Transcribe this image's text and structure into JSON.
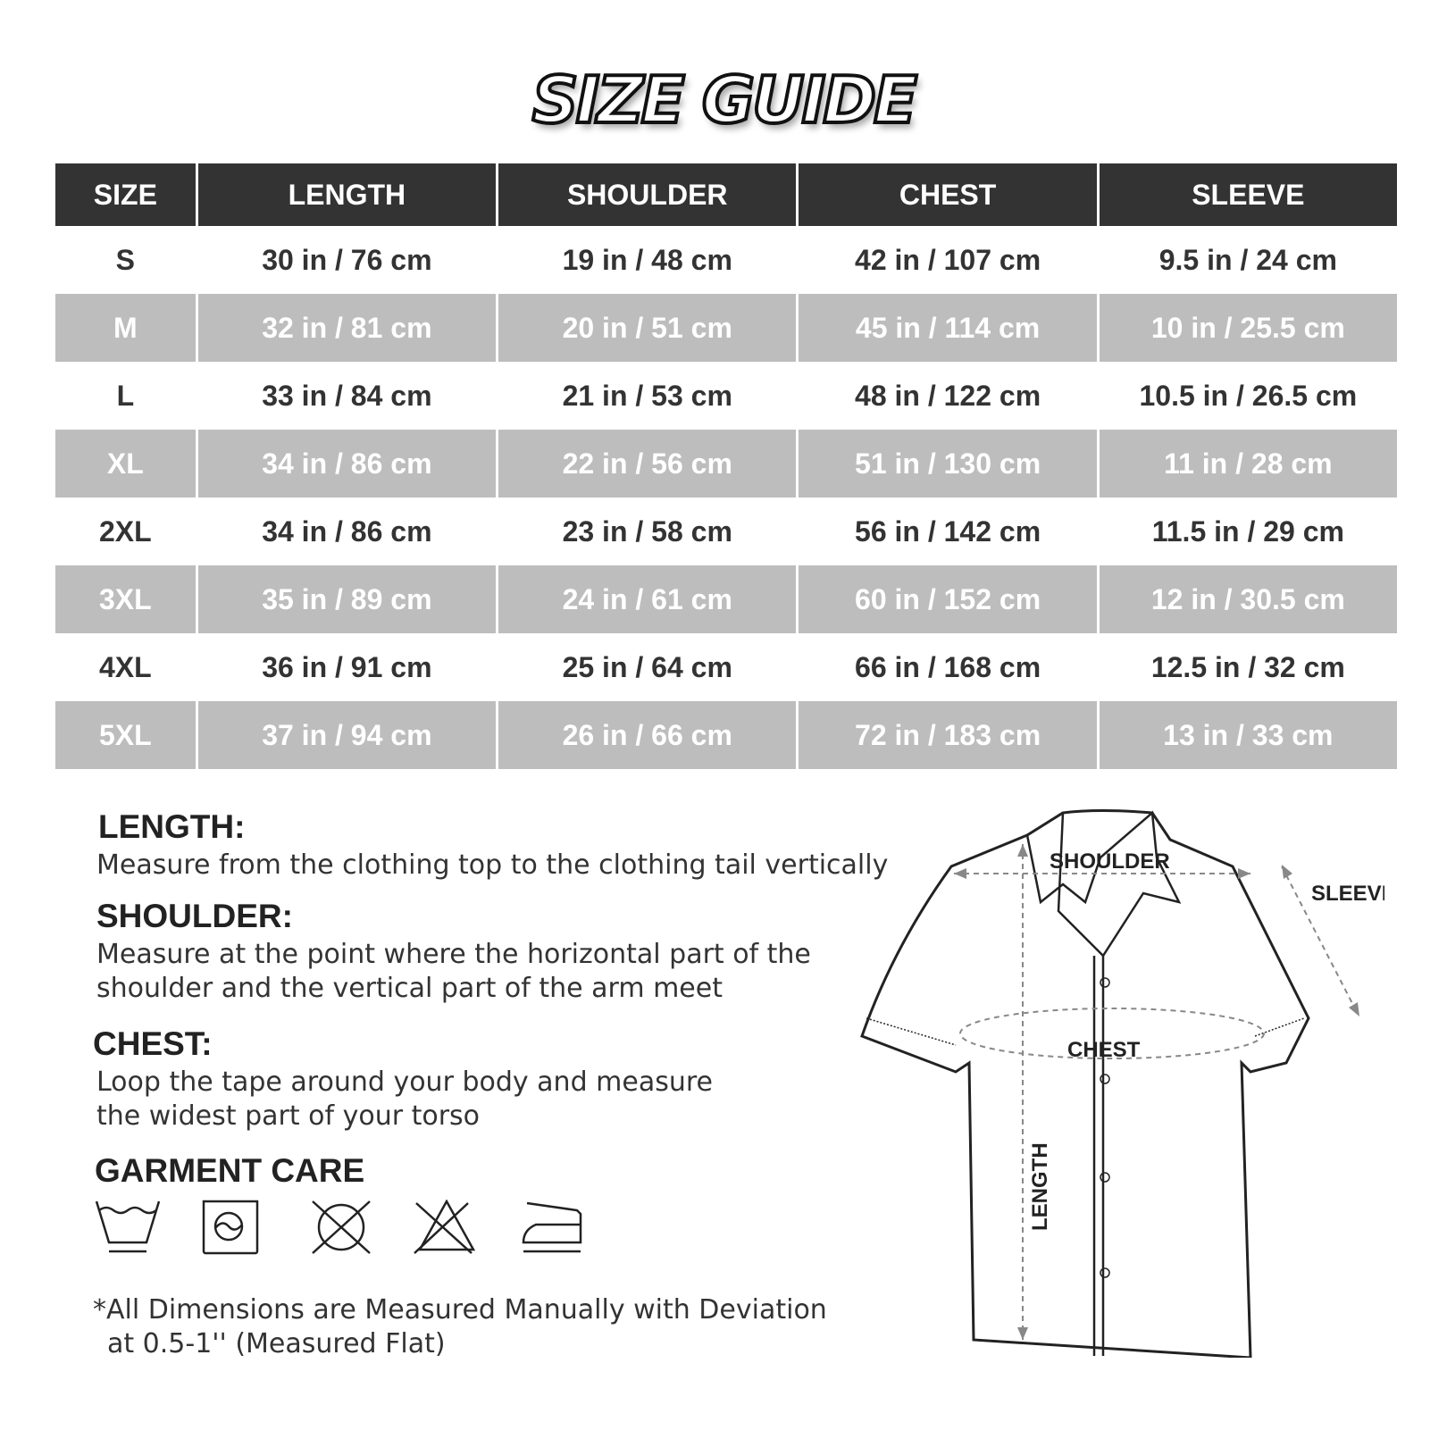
{
  "title": "SIZE GUIDE",
  "table": {
    "headers": [
      "SIZE",
      "LENGTH",
      "SHOULDER",
      "CHEST",
      "SLEEVE"
    ],
    "rows": [
      [
        "S",
        "30 in / 76 cm",
        "19 in / 48 cm",
        "42 in / 107 cm",
        "9.5 in / 24 cm"
      ],
      [
        "M",
        "32 in / 81 cm",
        "20 in / 51 cm",
        "45 in / 114 cm",
        "10 in / 25.5 cm"
      ],
      [
        "L",
        "33 in / 84 cm",
        "21 in / 53 cm",
        "48 in / 122 cm",
        "10.5 in / 26.5 cm"
      ],
      [
        "XL",
        "34 in / 86 cm",
        "22 in / 56 cm",
        "51 in / 130 cm",
        "11 in / 28 cm"
      ],
      [
        "2XL",
        "34 in / 86 cm",
        "23 in / 58 cm",
        "56 in / 142 cm",
        "11.5 in / 29 cm"
      ],
      [
        "3XL",
        "35 in / 89 cm",
        "24 in / 61 cm",
        "60 in / 152 cm",
        "12 in / 30.5 cm"
      ],
      [
        "4XL",
        "36 in / 91 cm",
        "25 in / 64 cm",
        "66 in / 168 cm",
        "12.5 in / 32 cm"
      ],
      [
        "5XL",
        "37 in / 94 cm",
        "26 in / 66 cm",
        "72 in / 183 cm",
        "13 in / 33 cm"
      ]
    ]
  },
  "instructions": {
    "length": {
      "heading": "LENGTH:",
      "text": "Measure from the clothing top to the clothing tail vertically"
    },
    "shoulder": {
      "heading": "SHOULDER:",
      "line1": "Measure at the point where the horizontal part of the",
      "line2": "shoulder and the vertical part of the arm meet"
    },
    "chest": {
      "heading": "CHEST:",
      "line1": "Loop the tape around your body and measure",
      "line2": "the widest part of your torso"
    }
  },
  "care": {
    "heading": "GARMENT CARE",
    "icons": [
      "hand-wash-icon",
      "tumble-dry-icon",
      "do-not-dry-clean-icon",
      "do-not-bleach-icon",
      "iron-icon"
    ]
  },
  "note": {
    "line1": "*All Dimensions are Measured Manually with Deviation",
    "line2": "at 0.5-1''  (Measured Flat)"
  },
  "diagram": {
    "shoulder": "SHOULDER",
    "sleeve": "SLEEVE",
    "chest": "CHEST",
    "length": "LENGTH"
  }
}
